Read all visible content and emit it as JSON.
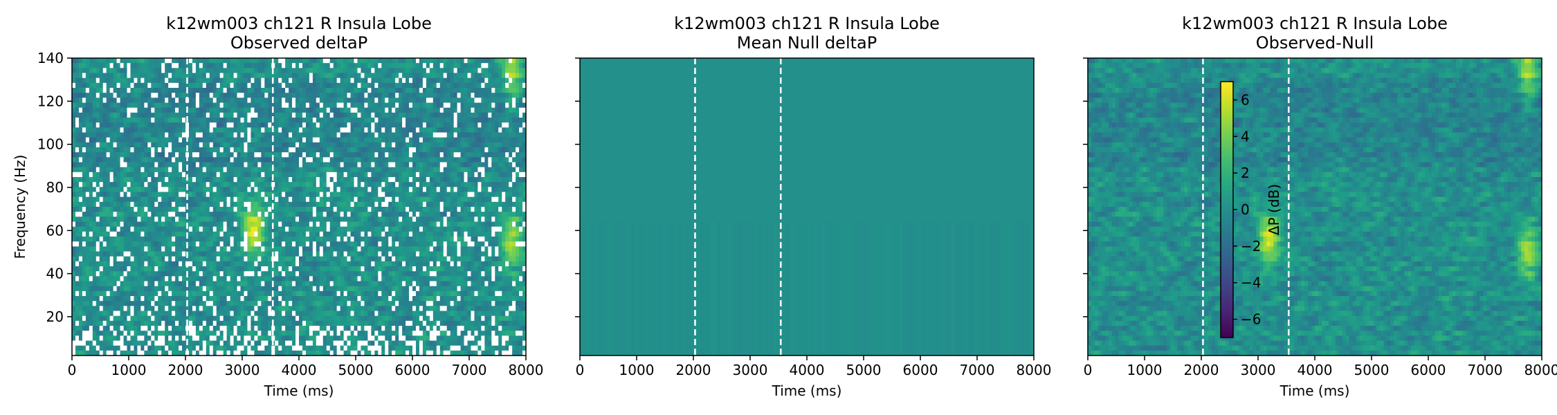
{
  "chart_data": [
    {
      "type": "heatmap",
      "title": "k12wm003 ch121 R Insula Lobe",
      "subtitle": "Observed deltaP",
      "xlabel": "Time (ms)",
      "ylabel": "Frequency (Hz)",
      "xlim": [
        0,
        8000
      ],
      "ylim": [
        2,
        140
      ],
      "x_ticks": [
        0,
        1000,
        2000,
        3000,
        4000,
        5000,
        6000,
        7000,
        8000
      ],
      "y_ticks": [
        20,
        40,
        60,
        80,
        100,
        120,
        140
      ],
      "vlines_ms": [
        2030,
        3540
      ],
      "colormap": "viridis",
      "gaps": "white gaps where values are missing",
      "hotspots": [
        {
          "t": 3200,
          "f": 60,
          "value": 6
        },
        {
          "t": 7750,
          "f": 55,
          "value": 5
        },
        {
          "t": 7750,
          "f": 135,
          "value": 5
        }
      ]
    },
    {
      "type": "heatmap",
      "title": "k12wm003 ch121 R Insula Lobe",
      "subtitle": "Mean Null deltaP",
      "xlabel": "Time (ms)",
      "xlim": [
        0,
        8000
      ],
      "ylim": [
        2,
        140
      ],
      "x_ticks": [
        0,
        1000,
        2000,
        3000,
        4000,
        5000,
        6000,
        7000,
        8000
      ],
      "y_ticks": [
        20,
        40,
        60,
        80,
        100,
        120,
        140
      ],
      "vlines_ms": [
        2030,
        3540
      ],
      "colormap": "viridis",
      "approx_value": 0
    },
    {
      "type": "heatmap",
      "title": "k12wm003 ch121 R Insula Lobe",
      "subtitle": "Observed-Null",
      "xlabel": "Time (ms)",
      "xlim": [
        0,
        8000
      ],
      "ylim": [
        2,
        140
      ],
      "x_ticks": [
        0,
        1000,
        2000,
        3000,
        4000,
        5000,
        6000,
        7000,
        8000
      ],
      "y_ticks": [
        20,
        40,
        60,
        80,
        100,
        120,
        140
      ],
      "vlines_ms": [
        2030,
        3540
      ],
      "colormap": "viridis",
      "colorbar": {
        "label": "ΔP (dB)",
        "range": [
          -7,
          7
        ],
        "ticks": [
          -6,
          -4,
          -2,
          0,
          2,
          4,
          6
        ],
        "tick_labels": [
          "−6",
          "−4",
          "−2",
          "0",
          "2",
          "4",
          "6"
        ]
      },
      "hotspots": [
        {
          "t": 3200,
          "f": 55,
          "value": 6
        },
        {
          "t": 7750,
          "f": 50,
          "value": 5
        },
        {
          "t": 7750,
          "f": 135,
          "value": 5
        }
      ]
    }
  ]
}
